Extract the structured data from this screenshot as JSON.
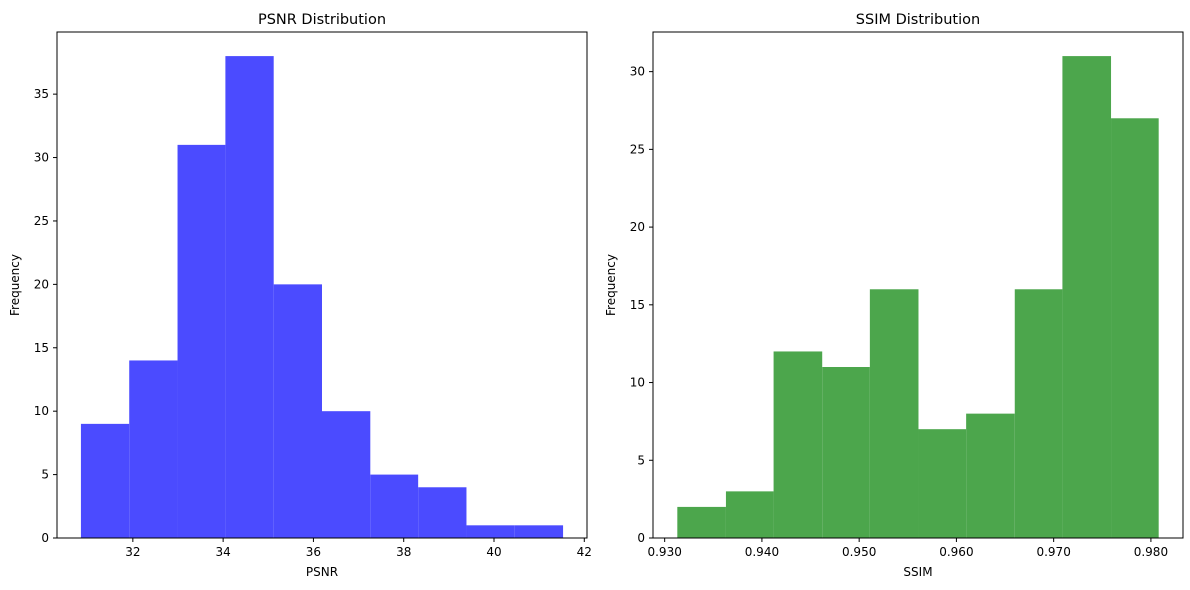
{
  "chart_data": [
    {
      "type": "bar",
      "subtype": "histogram",
      "title": "PSNR Distribution",
      "xlabel": "PSNR",
      "ylabel": "Frequency",
      "color": "#4b4bff",
      "bin_edges": [
        30.85,
        31.92,
        32.99,
        34.05,
        35.12,
        36.19,
        37.26,
        38.32,
        39.39,
        40.46,
        41.53
      ],
      "values": [
        9,
        14,
        31,
        38,
        20,
        10,
        5,
        4,
        1,
        1
      ],
      "xlim": [
        30.32,
        42.06
      ],
      "ylim": [
        0,
        39.9
      ],
      "xticks": [
        32,
        34,
        36,
        38,
        40,
        42
      ],
      "yticks": [
        0,
        5,
        10,
        15,
        20,
        25,
        30,
        35
      ],
      "grid": false
    },
    {
      "type": "bar",
      "subtype": "histogram",
      "title": "SSIM Distribution",
      "xlabel": "SSIM",
      "ylabel": "Frequency",
      "color": "#4ca64c",
      "bin_edges": [
        0.9313,
        0.9363,
        0.9412,
        0.9462,
        0.9511,
        0.9561,
        0.961,
        0.966,
        0.9709,
        0.9759,
        0.9808
      ],
      "values": [
        2,
        3,
        12,
        11,
        16,
        7,
        8,
        16,
        31,
        27
      ],
      "xlim": [
        0.9288,
        0.9833
      ],
      "ylim": [
        0,
        32.55
      ],
      "xticks": [
        0.93,
        0.94,
        0.95,
        0.96,
        0.97,
        0.98
      ],
      "yticks": [
        0,
        5,
        10,
        15,
        20,
        25,
        30
      ],
      "grid": false
    }
  ]
}
